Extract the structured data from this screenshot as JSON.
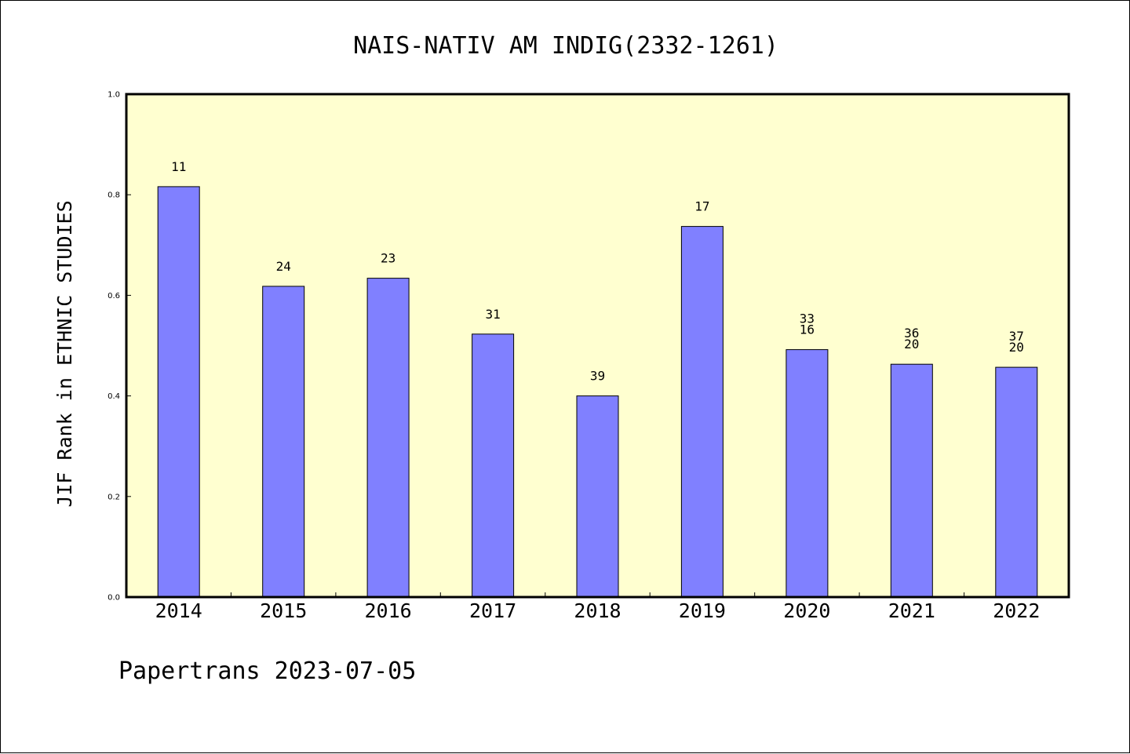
{
  "chart_data": {
    "type": "bar",
    "title": "NAIS-NATIV AM INDIG(2332-1261)",
    "ylabel": "JIF Rank in ETHNIC STUDIES",
    "xlabel": "",
    "ylim": [
      0,
      1.0
    ],
    "yticks": [
      "0.0",
      "0.2",
      "0.4",
      "0.6",
      "0.8",
      "1.0"
    ],
    "grid": false,
    "categories": [
      "2014",
      "2015",
      "2016",
      "2017",
      "2018",
      "2019",
      "2020",
      "2021",
      "2022"
    ],
    "values": [
      0.816,
      0.618,
      0.634,
      0.523,
      0.4,
      0.737,
      0.492,
      0.463,
      0.457
    ],
    "labels": [
      [
        "11"
      ],
      [
        "24"
      ],
      [
        "23"
      ],
      [
        "31"
      ],
      [
        "39"
      ],
      [
        "17"
      ],
      [
        "33",
        "16"
      ],
      [
        "36",
        "20"
      ],
      [
        "37",
        "20"
      ]
    ],
    "colors": {
      "bar_fill": "#8080ff",
      "plot_background": "#ffffd0",
      "axis": "#000000"
    }
  },
  "footer": {
    "text": "Papertrans 2023-07-05"
  }
}
